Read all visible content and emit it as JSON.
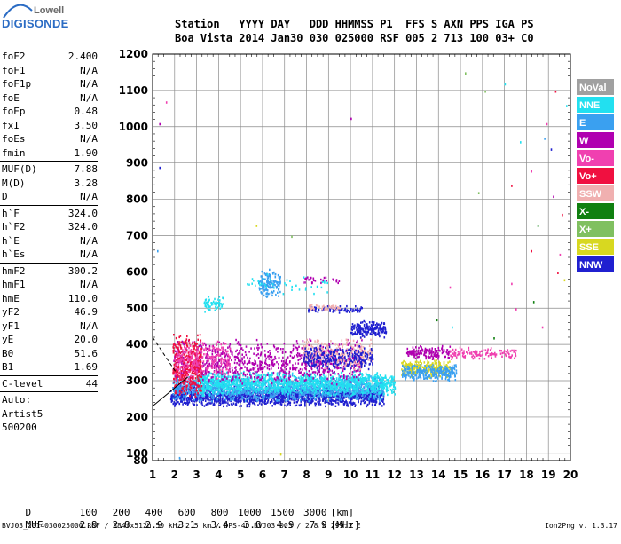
{
  "logo": {
    "line1": "Lowell",
    "line2": "DIGISONDE"
  },
  "header": {
    "line1": "Station   YYYY DAY   DDD HHMMSS P1  FFS S AXN PPS IGA PS",
    "line2": "Boa Vista 2014 Jan30 030 025000 RSF 005 2 713 100 03+ C0"
  },
  "params_groups": [
    [
      {
        "k": "foF2",
        "v": "2.400"
      },
      {
        "k": "foF1",
        "v": "N/A"
      },
      {
        "k": "foF1p",
        "v": "N/A"
      },
      {
        "k": "foE",
        "v": "N/A"
      },
      {
        "k": "foEp",
        "v": "0.48"
      },
      {
        "k": "fxI",
        "v": "3.50"
      },
      {
        "k": "foEs",
        "v": "N/A"
      },
      {
        "k": "fmin",
        "v": "1.90"
      }
    ],
    [
      {
        "k": "MUF(D)",
        "v": "7.88"
      },
      {
        "k": "M(D)",
        "v": "3.28"
      },
      {
        "k": "D",
        "v": "N/A"
      }
    ],
    [
      {
        "k": "h`F",
        "v": "324.0"
      },
      {
        "k": "h`F2",
        "v": "324.0"
      },
      {
        "k": "h`E",
        "v": "N/A"
      },
      {
        "k": "h`Es",
        "v": "N/A"
      }
    ],
    [
      {
        "k": "hmF2",
        "v": "300.2"
      },
      {
        "k": "hmF1",
        "v": "N/A"
      },
      {
        "k": "hmE",
        "v": "110.0"
      },
      {
        "k": "yF2",
        "v": "46.9"
      },
      {
        "k": "yF1",
        "v": "N/A"
      },
      {
        "k": "yE",
        "v": "20.0"
      },
      {
        "k": "B0",
        "v": "51.6"
      },
      {
        "k": "B1",
        "v": "1.69"
      }
    ],
    [
      {
        "k": "C-level",
        "v": "44"
      }
    ],
    [
      {
        "k": "Auto:",
        "v": ""
      },
      {
        "k": "Artist5",
        "v": ""
      },
      {
        "k": "500200",
        "v": ""
      }
    ]
  ],
  "footer": {
    "d_label": "D",
    "d_values": [
      "100",
      "200",
      "400",
      "600",
      "800",
      "1000",
      "1500",
      "3000",
      "[km]"
    ],
    "muf_label": "MUF",
    "muf_values": [
      "2.8",
      "2.8",
      "2.9",
      "3.1",
      "3.4",
      "3.8",
      "4.9",
      "7.9",
      "[MHz]"
    ],
    "info": "BVJ03_2014030025000.RSF / 384fx512h 50 kHz 2.5 km / DPS-4D BVJ03 003 / 2.8 N 299.3 E",
    "version": "Ion2Png v. 1.3.17"
  },
  "chart_data": {
    "type": "scatter",
    "xlim": [
      1,
      20
    ],
    "ylim": [
      80,
      1200
    ],
    "x_ticks": [
      1,
      2,
      3,
      4,
      5,
      6,
      7,
      8,
      9,
      10,
      11,
      12,
      13,
      14,
      15,
      16,
      17,
      18,
      19,
      20
    ],
    "y_ticks": [
      100,
      200,
      300,
      400,
      500,
      600,
      700,
      800,
      900,
      1000,
      1100,
      1200
    ],
    "grid": true,
    "legend_position": "right",
    "legend": [
      {
        "name": "NoVal",
        "color": "#a0a0a0"
      },
      {
        "name": "NNE",
        "color": "#22e0f0"
      },
      {
        "name": "E",
        "color": "#3aa0f0"
      },
      {
        "name": "W",
        "color": "#b000b0"
      },
      {
        "name": "Vo-",
        "color": "#f040b0"
      },
      {
        "name": "Vo+",
        "color": "#f01040"
      },
      {
        "name": "SSW",
        "color": "#f0b0b0"
      },
      {
        "name": "X-",
        "color": "#108010"
      },
      {
        "name": "X+",
        "color": "#80c060"
      },
      {
        "name": "SSE",
        "color": "#d8d820"
      },
      {
        "name": "NNW",
        "color": "#2020d0"
      }
    ],
    "echo_regions": [
      {
        "name": "NNW",
        "x": [
          1.8,
          11.5
        ],
        "y": [
          230,
          290
        ],
        "density": 1600
      },
      {
        "name": "E",
        "x": [
          1.9,
          11.5
        ],
        "y": [
          245,
          320
        ],
        "density": 1400
      },
      {
        "name": "NNE",
        "x": [
          3.0,
          12.0
        ],
        "y": [
          260,
          330
        ],
        "density": 1300
      },
      {
        "name": "W",
        "x": [
          1.9,
          10.5
        ],
        "y": [
          290,
          420
        ],
        "density": 900
      },
      {
        "name": "Vo+",
        "x": [
          1.9,
          3.2
        ],
        "y": [
          250,
          440
        ],
        "density": 400
      },
      {
        "name": "Vo-",
        "x": [
          2.0,
          4.5
        ],
        "y": [
          300,
          420
        ],
        "density": 250
      },
      {
        "name": "SSW",
        "x": [
          7.8,
          11.0
        ],
        "y": [
          330,
          420
        ],
        "density": 300
      },
      {
        "name": "SSE",
        "x": [
          12.3,
          14.5
        ],
        "y": [
          310,
          360
        ],
        "density": 300
      },
      {
        "name": "E",
        "x": [
          12.3,
          14.8
        ],
        "y": [
          300,
          350
        ],
        "density": 250
      },
      {
        "name": "NNW",
        "x": [
          10.0,
          11.6
        ],
        "y": [
          420,
          470
        ],
        "density": 180
      },
      {
        "name": "NNW",
        "x": [
          7.8,
          11.0
        ],
        "y": [
          330,
          400
        ],
        "density": 260
      },
      {
        "name": "W",
        "x": [
          12.5,
          14.5
        ],
        "y": [
          360,
          400
        ],
        "density": 150
      },
      {
        "name": "Vo-",
        "x": [
          14.5,
          17.5
        ],
        "y": [
          360,
          395
        ],
        "density": 120
      },
      {
        "name": "E",
        "x": [
          5.8,
          6.8
        ],
        "y": [
          530,
          610
        ],
        "density": 140
      },
      {
        "name": "NNE",
        "x": [
          3.3,
          4.2
        ],
        "y": [
          490,
          540
        ],
        "density": 60
      },
      {
        "name": "NNW",
        "x": [
          8.0,
          10.5
        ],
        "y": [
          490,
          510
        ],
        "density": 80
      },
      {
        "name": "SSW",
        "x": [
          8.0,
          9.5
        ],
        "y": [
          495,
          515
        ],
        "density": 50
      },
      {
        "name": "NNE",
        "x": [
          5.0,
          9.0
        ],
        "y": [
          540,
          600
        ],
        "density": 40
      },
      {
        "name": "W",
        "x": [
          7.8,
          9.5
        ],
        "y": [
          570,
          590
        ],
        "density": 30
      }
    ],
    "sparse_echoes": [
      [
        17.3,
        570,
        "Vo-"
      ],
      [
        18.2,
        660,
        "Vo+"
      ],
      [
        18.5,
        730,
        "X-"
      ],
      [
        18.2,
        880,
        "Vo-"
      ],
      [
        19.2,
        810,
        "W"
      ],
      [
        19.5,
        650,
        "Vo-"
      ],
      [
        19.8,
        1060,
        "NNE"
      ],
      [
        19.1,
        940,
        "NNW"
      ],
      [
        15.2,
        1150,
        "X+"
      ],
      [
        14.5,
        560,
        "Vo-"
      ],
      [
        14.6,
        450,
        "NNE"
      ],
      [
        13.9,
        470,
        "X-"
      ],
      [
        17.3,
        840,
        "Vo+"
      ],
      [
        17.7,
        960,
        "NNE"
      ],
      [
        18.8,
        970,
        "E"
      ],
      [
        19.6,
        760,
        "Vo+"
      ],
      [
        18.9,
        1010,
        "Vo-"
      ],
      [
        16.1,
        1100,
        "X+"
      ],
      [
        17.0,
        1120,
        "NNE"
      ],
      [
        10.0,
        1025,
        "W"
      ],
      [
        1.3,
        890,
        "NNW"
      ],
      [
        1.3,
        1010,
        "W"
      ],
      [
        1.6,
        1070,
        "Vo-"
      ],
      [
        5.7,
        730,
        "SSE"
      ],
      [
        7.3,
        700,
        "X+"
      ],
      [
        2.2,
        90,
        "E"
      ],
      [
        6.8,
        100,
        "SSE"
      ],
      [
        18.7,
        450,
        "Vo-"
      ],
      [
        19.4,
        600,
        "Vo+"
      ],
      [
        18.3,
        520,
        "X-"
      ],
      [
        16.5,
        420,
        "X-"
      ],
      [
        17.5,
        500,
        "Vo-"
      ],
      [
        19.3,
        1100,
        "Vo+"
      ],
      [
        19.7,
        580,
        "SSE"
      ],
      [
        15.8,
        820,
        "X+"
      ],
      [
        1.2,
        660,
        "E"
      ]
    ],
    "profile_lines": [
      {
        "points": [
          [
            1.0,
            230
          ],
          [
            2.6,
            310
          ]
        ],
        "style": "solid"
      },
      {
        "points": [
          [
            1.0,
            420
          ],
          [
            2.1,
            320
          ]
        ],
        "style": "dashed"
      }
    ]
  }
}
